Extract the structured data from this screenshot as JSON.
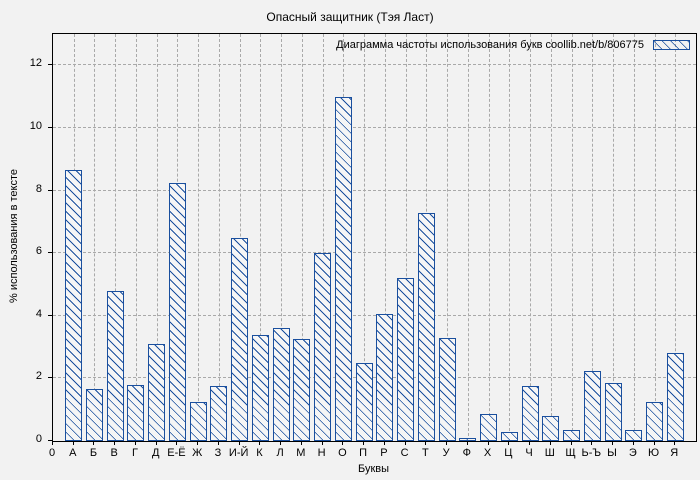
{
  "colors": {
    "background": "#f2f2f2",
    "bar_blue": "#1a4f9e",
    "grid_gray": "#a9a9a9",
    "frame": "#000000"
  },
  "chart_data": {
    "type": "bar",
    "title": "Опасный защитник (Тэя Ласт)",
    "legend": "Диаграмма частоты использования букв coollib.net/b/806775",
    "legend_position": "top-right-inside",
    "xlabel": "Буквы",
    "ylabel": "% использования в тексте",
    "x_origin_label": "0",
    "ylim": [
      0,
      13
    ],
    "yticks": [
      0,
      2,
      4,
      6,
      8,
      10,
      12
    ],
    "grid": true,
    "categories": [
      "А",
      "Б",
      "В",
      "Г",
      "Д",
      "Е-Ё",
      "Ж",
      "З",
      "И-Й",
      "К",
      "Л",
      "М",
      "Н",
      "О",
      "П",
      "Р",
      "С",
      "Т",
      "У",
      "Ф",
      "Х",
      "Ц",
      "Ч",
      "Ш",
      "Щ",
      "Ь-Ъ",
      "Ы",
      "Э",
      "Ю",
      "Я"
    ],
    "values": [
      8.65,
      1.65,
      4.8,
      1.8,
      3.1,
      8.25,
      1.25,
      1.75,
      6.5,
      3.4,
      3.6,
      3.25,
      6.0,
      11.0,
      2.5,
      4.05,
      5.2,
      7.3,
      3.3,
      0.1,
      0.85,
      0.3,
      1.75,
      0.8,
      0.35,
      2.25,
      1.85,
      0.35,
      1.25,
      2.8
    ]
  }
}
